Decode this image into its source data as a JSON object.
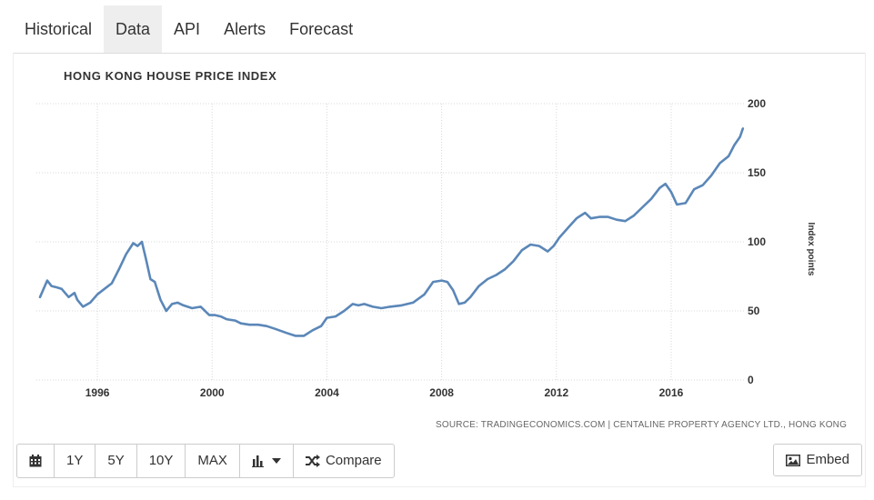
{
  "tabs": [
    {
      "label": "Historical",
      "active": false
    },
    {
      "label": "Data",
      "active": true
    },
    {
      "label": "API",
      "active": false
    },
    {
      "label": "Alerts",
      "active": false
    },
    {
      "label": "Forecast",
      "active": false
    }
  ],
  "toolbar": {
    "calendar_icon": "calendar-icon",
    "range_buttons": [
      "1Y",
      "5Y",
      "10Y",
      "MAX"
    ],
    "chart_type_icon": "bar-chart-icon",
    "compare_label": "Compare",
    "compare_icon": "shuffle-icon",
    "embed_label": "Embed",
    "embed_icon": "image-icon"
  },
  "colors": {
    "line": "#5b87b8",
    "grid": "#d8d8d8",
    "active_tab": "#eeeeee"
  },
  "chart_data": {
    "type": "line",
    "title": "HONG KONG HOUSE PRICE INDEX",
    "ylabel": "Index points",
    "xlabel": "",
    "ylim": [
      0,
      200
    ],
    "yticks": [
      0,
      50,
      100,
      150,
      200
    ],
    "xlim": [
      1994.0,
      2018.6
    ],
    "xticks": [
      1996,
      2000,
      2004,
      2008,
      2012,
      2016
    ],
    "grid": true,
    "source": "SOURCE: TRADINGECONOMICS.COM | CENTALINE PROPERTY AGENCY LTD., HONG KONG",
    "series": [
      {
        "name": "",
        "x": [
          1994.0,
          1994.25,
          1994.4,
          1994.6,
          1994.75,
          1995.0,
          1995.2,
          1995.3,
          1995.5,
          1995.75,
          1996.0,
          1996.25,
          1996.5,
          1996.75,
          1997.0,
          1997.25,
          1997.4,
          1997.55,
          1997.7,
          1997.85,
          1998.0,
          1998.2,
          1998.4,
          1998.6,
          1998.8,
          1999.0,
          1999.3,
          1999.6,
          1999.9,
          2000.1,
          2000.3,
          2000.5,
          2000.8,
          2001.0,
          2001.3,
          2001.6,
          2001.9,
          2002.2,
          2002.6,
          2002.9,
          2003.2,
          2003.5,
          2003.8,
          2004.0,
          2004.3,
          2004.6,
          2004.9,
          2005.1,
          2005.3,
          2005.6,
          2005.9,
          2006.2,
          2006.6,
          2007.0,
          2007.4,
          2007.7,
          2008.0,
          2008.2,
          2008.4,
          2008.6,
          2008.8,
          2009.0,
          2009.3,
          2009.6,
          2009.9,
          2010.2,
          2010.5,
          2010.8,
          2011.1,
          2011.4,
          2011.7,
          2011.9,
          2012.1,
          2012.4,
          2012.7,
          2013.0,
          2013.2,
          2013.5,
          2013.8,
          2014.1,
          2014.4,
          2014.7,
          2015.0,
          2015.3,
          2015.6,
          2015.8,
          2016.0,
          2016.2,
          2016.5,
          2016.8,
          2017.1,
          2017.4,
          2017.7,
          2018.0,
          2018.2,
          2018.4,
          2018.5
        ],
        "values": [
          60,
          72,
          68,
          67,
          66,
          60,
          63,
          58,
          53,
          56,
          62,
          66,
          70,
          80,
          91,
          99,
          97,
          100,
          87,
          73,
          71,
          58,
          50,
          55,
          56,
          54,
          52,
          53,
          47,
          47,
          46,
          44,
          43,
          41,
          40,
          40,
          39,
          37,
          34,
          32,
          32,
          36,
          39,
          45,
          46,
          50,
          55,
          54,
          55,
          53,
          52,
          53,
          54,
          56,
          62,
          71,
          72,
          71,
          65,
          55,
          56,
          60,
          68,
          73,
          76,
          80,
          86,
          94,
          98,
          97,
          93,
          97,
          103,
          110,
          117,
          121,
          117,
          118,
          118,
          116,
          115,
          119,
          125,
          131,
          139,
          142,
          136,
          127,
          128,
          138,
          141,
          148,
          157,
          162,
          170,
          176,
          182
        ]
      }
    ]
  }
}
